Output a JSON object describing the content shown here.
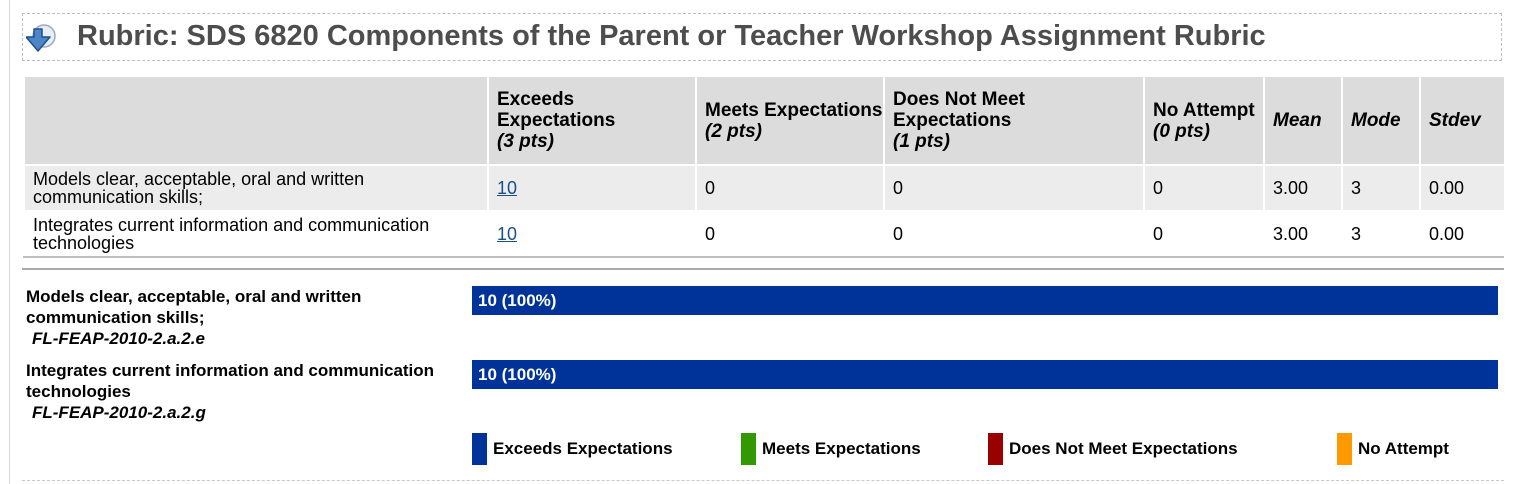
{
  "header": {
    "title": "Rubric: SDS 6820 Components of the Parent or Teacher Workshop Assignment Rubric",
    "icon": "download-arrow-icon"
  },
  "table": {
    "columns": [
      {
        "label": "",
        "points": ""
      },
      {
        "label": "Exceeds Expectations",
        "points": "(3 pts)"
      },
      {
        "label": "Meets Expectations",
        "points": "(2 pts)"
      },
      {
        "label": "Does Not Meet Expectations",
        "points": "(1 pts)"
      },
      {
        "label": "No Attempt",
        "points": "(0 pts)"
      },
      {
        "label": "Mean",
        "points": ""
      },
      {
        "label": "Mode",
        "points": ""
      },
      {
        "label": "Stdev",
        "points": ""
      }
    ],
    "rows": [
      {
        "criterion": "Models clear, acceptable, oral and written communication skills;",
        "exceeds": "10",
        "meets": "0",
        "does_not_meet": "0",
        "no_attempt": "0",
        "mean": "3.00",
        "mode": "3",
        "stdev": "0.00"
      },
      {
        "criterion": "Integrates current information and communication technologies",
        "exceeds": "10",
        "meets": "0",
        "does_not_meet": "0",
        "no_attempt": "0",
        "mean": "3.00",
        "mode": "3",
        "stdev": "0.00"
      }
    ]
  },
  "distribution": [
    {
      "criterion": "Models clear, acceptable, oral and written communication skills;",
      "code": "FL-FEAP-2010-2.a.2.e",
      "label": "10 (100%)",
      "fraction": 1.0
    },
    {
      "criterion": "Integrates current information and communication technologies",
      "code": "FL-FEAP-2010-2.a.2.g",
      "label": "10 (100%)",
      "fraction": 1.0
    }
  ],
  "legend": [
    {
      "label": "Exceeds Expectations",
      "color": "#003399"
    },
    {
      "label": "Meets Expectations",
      "color": "#339900"
    },
    {
      "label": "Does Not Meet Expectations",
      "color": "#990000"
    },
    {
      "label": "No Attempt",
      "color": "#ff9900"
    }
  ]
}
